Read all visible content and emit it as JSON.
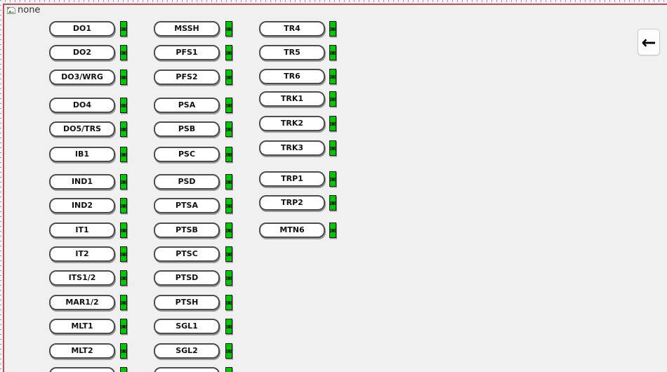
{
  "window": {
    "placeholder_label": "none",
    "placeholder_icon": "broken-image-icon"
  },
  "back_button": {
    "icon": "left-arrow-icon",
    "glyph": "←"
  },
  "colors": {
    "led_on": "#00c800",
    "form_border": "#bf4d4d",
    "background": "#f0f0f0",
    "button_border": "#4d4d4d"
  },
  "columns": [
    {
      "name": "column-1",
      "items": [
        {
          "label": "DO1",
          "indicator": "on"
        },
        {
          "label": "DO2",
          "indicator": "on"
        },
        {
          "label": "DO3/WRG",
          "indicator": "on"
        },
        {
          "label": "DO4",
          "indicator": "on"
        },
        {
          "label": "DO5/TRS",
          "indicator": "on"
        },
        {
          "label": "IB1",
          "indicator": "on"
        },
        {
          "label": "IND1",
          "indicator": "on"
        },
        {
          "label": "IND2",
          "indicator": "on"
        },
        {
          "label": "IT1",
          "indicator": "on"
        },
        {
          "label": "IT2",
          "indicator": "on"
        },
        {
          "label": "ITS1/2",
          "indicator": "on"
        },
        {
          "label": "MAR1/2",
          "indicator": "on"
        },
        {
          "label": "MLT1",
          "indicator": "on"
        },
        {
          "label": "MLT2",
          "indicator": "on"
        },
        {
          "label": "",
          "indicator": "on"
        }
      ]
    },
    {
      "name": "column-2",
      "items": [
        {
          "label": "MSSH",
          "indicator": "on"
        },
        {
          "label": "PFS1",
          "indicator": "on"
        },
        {
          "label": "PFS2",
          "indicator": "on"
        },
        {
          "label": "PSA",
          "indicator": "on"
        },
        {
          "label": "PSB",
          "indicator": "on"
        },
        {
          "label": "PSC",
          "indicator": "on"
        },
        {
          "label": "PSD",
          "indicator": "on"
        },
        {
          "label": "PTSA",
          "indicator": "on"
        },
        {
          "label": "PTSB",
          "indicator": "on"
        },
        {
          "label": "PTSC",
          "indicator": "on"
        },
        {
          "label": "PTSD",
          "indicator": "on"
        },
        {
          "label": "PTSH",
          "indicator": "on"
        },
        {
          "label": "SGL1",
          "indicator": "on"
        },
        {
          "label": "SGL2",
          "indicator": "on"
        },
        {
          "label": "",
          "indicator": "on"
        }
      ]
    },
    {
      "name": "column-3",
      "items": [
        {
          "label": "TR4",
          "indicator": "on"
        },
        {
          "label": "TR5",
          "indicator": "on"
        },
        {
          "label": "TR6",
          "indicator": "on"
        },
        {
          "label": "TRK1",
          "indicator": "on"
        },
        {
          "label": "TRK2",
          "indicator": "on"
        },
        {
          "label": "TRK3",
          "indicator": "on"
        },
        {
          "label": "TRP1",
          "indicator": "on"
        },
        {
          "label": "TRP2",
          "indicator": "on"
        },
        {
          "label": "MTN6",
          "indicator": "on"
        }
      ]
    }
  ]
}
